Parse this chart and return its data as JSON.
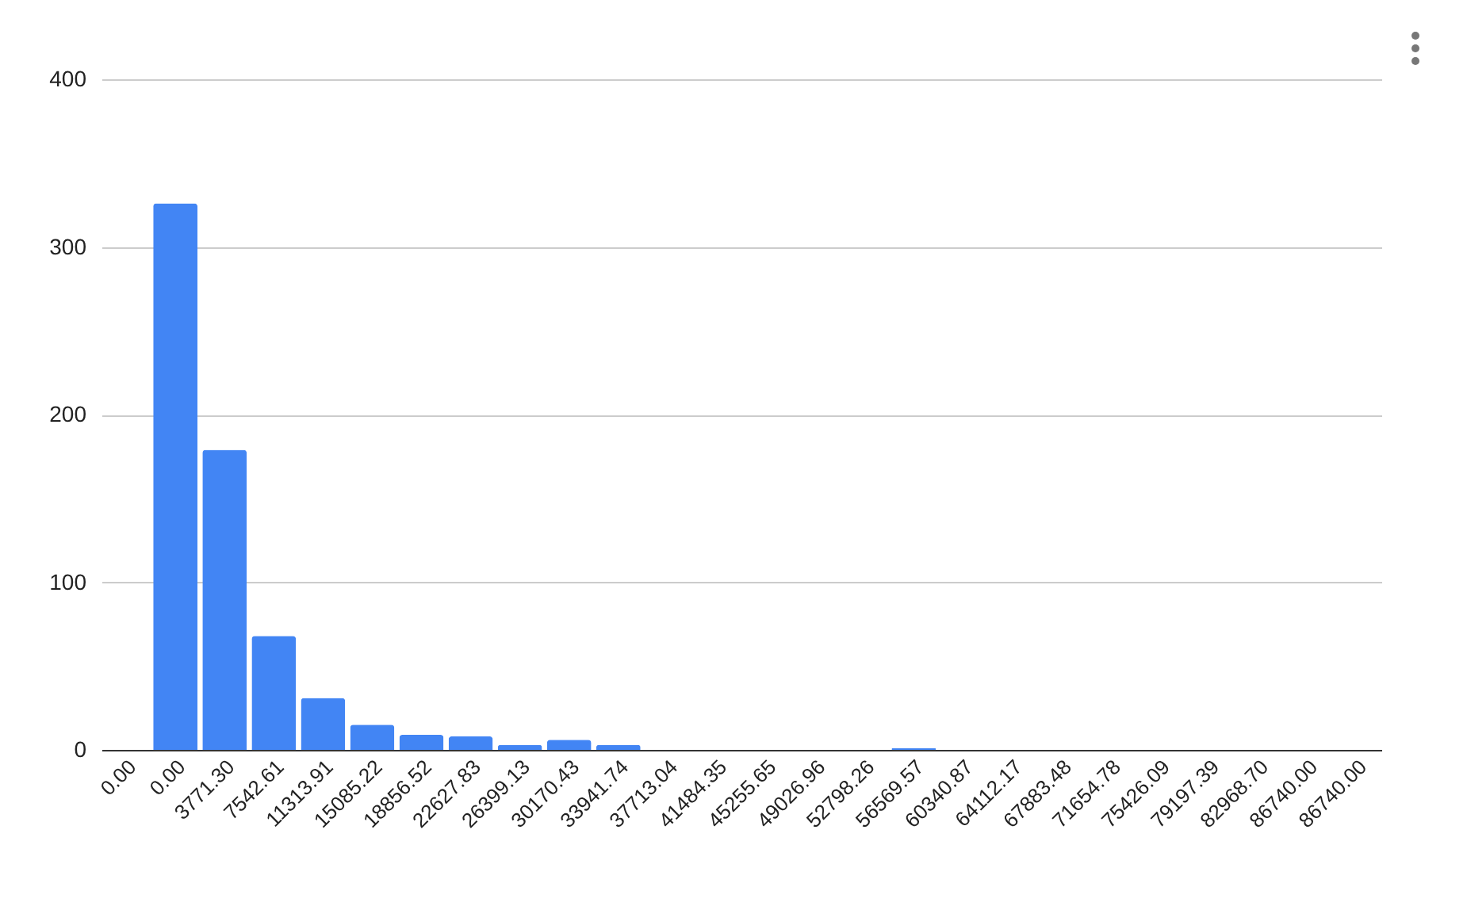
{
  "chart_data": {
    "type": "bar",
    "categories": [
      "0.00",
      "0.00",
      "3771.30",
      "7542.61",
      "11313.91",
      "15085.22",
      "18856.52",
      "22627.83",
      "26399.13",
      "30170.43",
      "33941.74",
      "37713.04",
      "41484.35",
      "45255.65",
      "49026.96",
      "52798.26",
      "56569.57",
      "60340.87",
      "64112.17",
      "67883.48",
      "71654.78",
      "75426.09",
      "79197.39",
      "82968.70",
      "86740.00",
      "86740.00"
    ],
    "values": [
      0,
      326,
      179,
      68,
      31,
      15,
      9,
      8,
      3,
      6,
      3,
      0,
      0,
      0,
      0,
      0,
      1,
      0,
      0,
      0,
      0,
      0,
      0,
      0,
      0,
      0
    ],
    "color": "#4285f4",
    "ylim": [
      0,
      400
    ],
    "yticks": [
      0,
      100,
      200,
      300,
      400
    ],
    "grid": "y"
  }
}
